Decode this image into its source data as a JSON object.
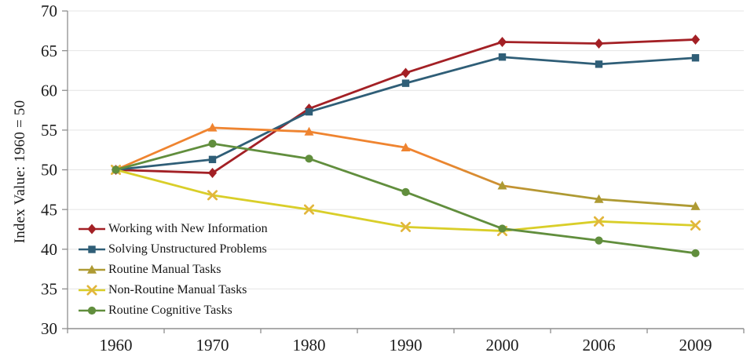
{
  "chart_data": {
    "type": "line",
    "title": "",
    "ylabel": "Index Value: 1960 = 50",
    "xlabel": "",
    "ylim": [
      30,
      70
    ],
    "ytick_step": 5,
    "y_tick_labels": [
      "70",
      "65",
      "60",
      "55",
      "50",
      "45",
      "40",
      "35",
      "30"
    ],
    "categories": [
      "1960",
      "1970",
      "1980",
      "1990",
      "2000",
      "2006",
      "2009"
    ],
    "grid": "horizontal",
    "legend_position": "inside-bottom-left",
    "series": [
      {
        "name": "Working with New Information",
        "marker": "diamond",
        "color": "#A32025",
        "values": [
          50,
          49.6,
          57.7,
          62.2,
          66.1,
          65.9,
          66.4
        ]
      },
      {
        "name": "Solving Unstructured Problems",
        "marker": "square",
        "color": "#2F5E77",
        "values": [
          50,
          51.3,
          57.3,
          60.9,
          64.2,
          63.3,
          64.1
        ]
      },
      {
        "name": "Routine Manual Tasks",
        "marker": "triangle",
        "color": "#EF8430",
        "color_end": "#AE9A33",
        "color_switch_index": 4,
        "values": [
          50,
          55.3,
          54.8,
          52.8,
          48.0,
          46.3,
          45.4
        ]
      },
      {
        "name": "Non-Routine Manual Tasks",
        "marker": "x",
        "color": "#D9CE29",
        "marker_color": "#E2B63C",
        "values": [
          50,
          46.8,
          45.0,
          42.8,
          42.3,
          43.5,
          43.0
        ]
      },
      {
        "name": "Routine Cognitive Tasks",
        "marker": "circle",
        "color": "#618E3D",
        "values": [
          50,
          53.3,
          51.4,
          47.2,
          42.6,
          41.1,
          39.5
        ]
      }
    ],
    "colors": {
      "grid": "#E4E4E4",
      "axis": "#8F8F8F",
      "tick_text": "#1B1B1B",
      "background": "#FFFFFF"
    }
  }
}
